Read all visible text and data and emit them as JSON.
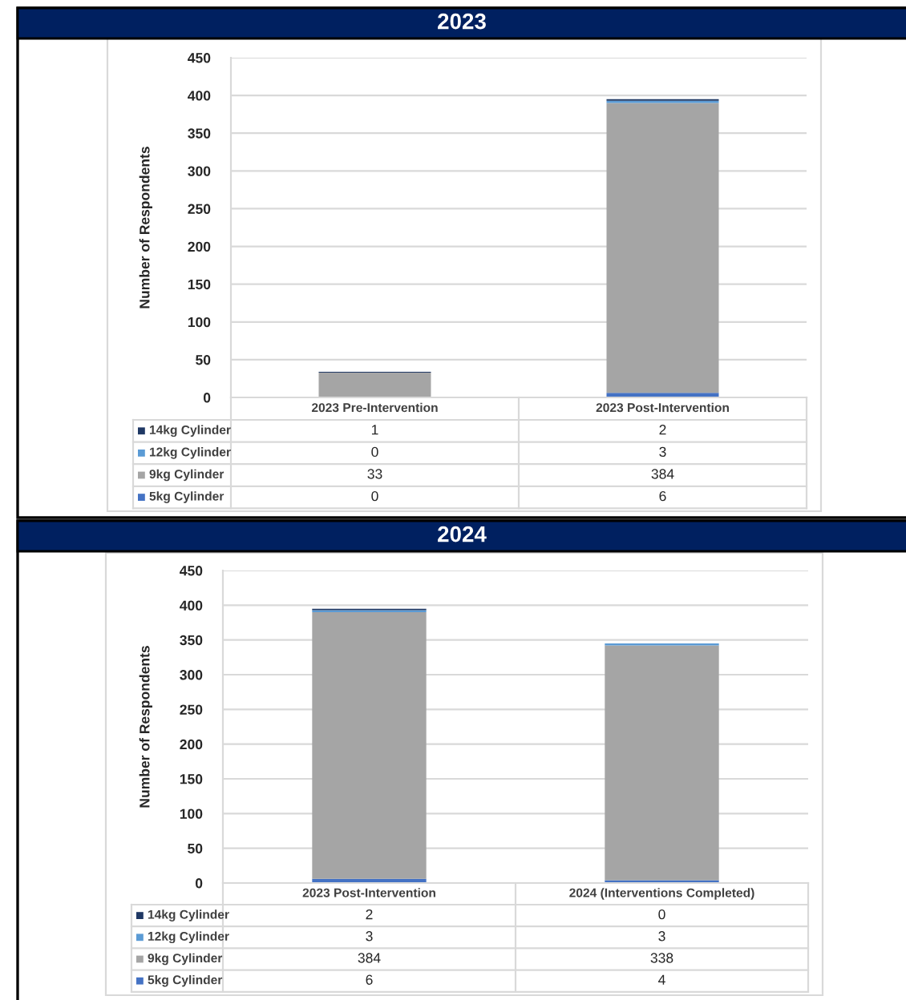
{
  "chart_data": [
    {
      "type": "bar",
      "title": "2023",
      "ylabel": "Number of Respondents",
      "stacked": true,
      "categories": [
        "2023 Pre-Intervention",
        "2023 Post-Intervention"
      ],
      "series": [
        {
          "name": "5kg Cylinder",
          "color": "#4472c4",
          "values": [
            0,
            6
          ]
        },
        {
          "name": "9kg Cylinder",
          "color": "#a5a5a5",
          "values": [
            33,
            384
          ]
        },
        {
          "name": "12kg Cylinder",
          "color": "#5b9bd5",
          "values": [
            0,
            3
          ]
        },
        {
          "name": "14kg Cylinder",
          "color": "#1f3864",
          "values": [
            1,
            2
          ]
        }
      ],
      "ylim": [
        0,
        450
      ],
      "yticks": [
        0,
        50,
        100,
        150,
        200,
        250,
        300,
        350,
        400,
        450
      ],
      "grid": "y",
      "data_labels": true,
      "legend": "bottom"
    },
    {
      "type": "bar",
      "title": "2024",
      "ylabel": "Number of Respondents",
      "stacked": true,
      "categories": [
        "2023 Post-Intervention",
        "2024 (Interventions Completed)"
      ],
      "series": [
        {
          "name": "5kg Cylinder",
          "color": "#4472c4",
          "values": [
            6,
            4
          ]
        },
        {
          "name": "9kg Cylinder",
          "color": "#a5a5a5",
          "values": [
            384,
            338
          ]
        },
        {
          "name": "12kg Cylinder",
          "color": "#5b9bd5",
          "values": [
            3,
            3
          ]
        },
        {
          "name": "14kg Cylinder",
          "color": "#1f3864",
          "values": [
            2,
            0
          ]
        }
      ],
      "ylim": [
        0,
        450
      ],
      "yticks": [
        0,
        50,
        100,
        150,
        200,
        250,
        300,
        350,
        400,
        450
      ],
      "grid": "y",
      "data_labels": true,
      "legend": "bottom"
    }
  ]
}
